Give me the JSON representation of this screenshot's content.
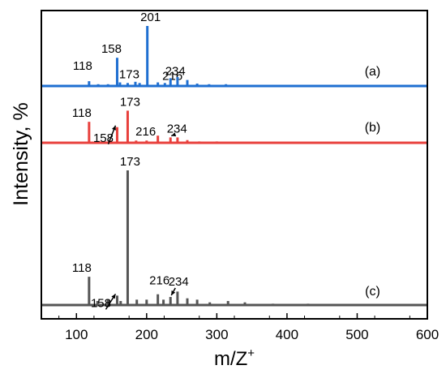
{
  "chart_data": {
    "type": "line",
    "xlabel": "m/Z",
    "xlabel_sup": "+",
    "ylabel": "Intensity, %",
    "xlim": [
      50,
      600
    ],
    "xticks": [
      100,
      200,
      300,
      400,
      500,
      600
    ],
    "grid": false,
    "series": [
      {
        "name": "(a)",
        "color": "#1f6fd1",
        "peaks": [
          {
            "x": 118,
            "y": 0.08,
            "label": "118"
          },
          {
            "x": 131,
            "y": 0.03
          },
          {
            "x": 145,
            "y": 0.03
          },
          {
            "x": 158,
            "y": 0.47,
            "label": "158"
          },
          {
            "x": 162,
            "y": 0.06
          },
          {
            "x": 173,
            "y": 0.05,
            "label": "173"
          },
          {
            "x": 184,
            "y": 0.07
          },
          {
            "x": 190,
            "y": 0.05
          },
          {
            "x": 201,
            "y": 1.0,
            "label": "201"
          },
          {
            "x": 216,
            "y": 0.06,
            "label": "216"
          },
          {
            "x": 226,
            "y": 0.05
          },
          {
            "x": 234,
            "y": 0.13,
            "label": "234"
          },
          {
            "x": 244,
            "y": 0.15
          },
          {
            "x": 258,
            "y": 0.1
          },
          {
            "x": 272,
            "y": 0.04
          },
          {
            "x": 289,
            "y": 0.03
          },
          {
            "x": 313,
            "y": 0.03
          },
          {
            "x": 340,
            "y": 0.02
          },
          {
            "x": 380,
            "y": 0.02
          },
          {
            "x": 430,
            "y": 0.02
          },
          {
            "x": 470,
            "y": 0.02
          },
          {
            "x": 530,
            "y": 0.02
          }
        ]
      },
      {
        "name": "(b)",
        "color": "#e8403c",
        "peaks": [
          {
            "x": 118,
            "y": 0.47,
            "label": "118"
          },
          {
            "x": 132,
            "y": 0.04
          },
          {
            "x": 148,
            "y": 0.05
          },
          {
            "x": 158,
            "y": 0.35,
            "label": "158"
          },
          {
            "x": 173,
            "y": 0.72,
            "label": "173"
          },
          {
            "x": 185,
            "y": 0.05
          },
          {
            "x": 200,
            "y": 0.05
          },
          {
            "x": 216,
            "y": 0.16,
            "label": "216"
          },
          {
            "x": 234,
            "y": 0.12,
            "label": "234"
          },
          {
            "x": 244,
            "y": 0.12
          },
          {
            "x": 258,
            "y": 0.06
          },
          {
            "x": 275,
            "y": 0.03
          },
          {
            "x": 300,
            "y": 0.03
          },
          {
            "x": 330,
            "y": 0.02
          },
          {
            "x": 380,
            "y": 0.02
          },
          {
            "x": 420,
            "y": 0.02
          },
          {
            "x": 470,
            "y": 0.02
          },
          {
            "x": 530,
            "y": 0.02
          }
        ]
      },
      {
        "name": "(c)",
        "color": "#555555",
        "peaks": [
          {
            "x": 118,
            "y": 0.21,
            "label": "118"
          },
          {
            "x": 130,
            "y": 0.03
          },
          {
            "x": 145,
            "y": 0.04
          },
          {
            "x": 158,
            "y": 0.07,
            "label": "158"
          },
          {
            "x": 163,
            "y": 0.03
          },
          {
            "x": 173,
            "y": 1.0,
            "label": "173"
          },
          {
            "x": 186,
            "y": 0.04
          },
          {
            "x": 200,
            "y": 0.04
          },
          {
            "x": 216,
            "y": 0.08,
            "label": "216"
          },
          {
            "x": 224,
            "y": 0.04
          },
          {
            "x": 234,
            "y": 0.06,
            "label": "234"
          },
          {
            "x": 244,
            "y": 0.1
          },
          {
            "x": 258,
            "y": 0.05
          },
          {
            "x": 272,
            "y": 0.04
          },
          {
            "x": 290,
            "y": 0.02
          },
          {
            "x": 316,
            "y": 0.03
          },
          {
            "x": 340,
            "y": 0.02
          },
          {
            "x": 380,
            "y": 0.01
          },
          {
            "x": 430,
            "y": 0.01
          }
        ]
      }
    ]
  }
}
